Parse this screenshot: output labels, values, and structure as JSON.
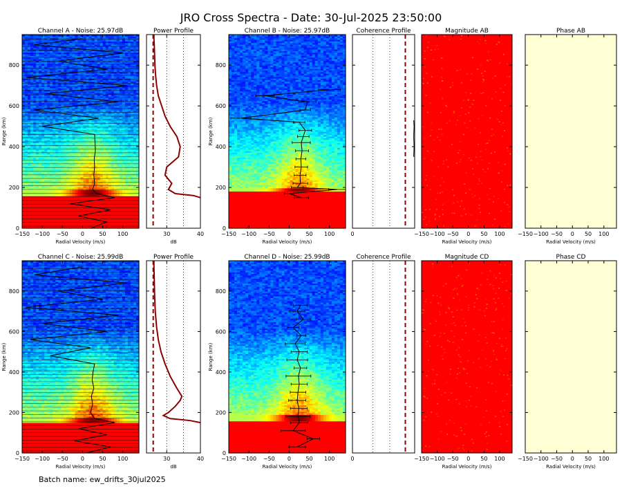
{
  "title": "JRO Cross Spectra - Date: 30-Jul-2025 23:50:00",
  "batch_label": "Batch name: ew_drifts_30jul2025",
  "colors": {
    "red": "#ff0000",
    "profile_line": "#8b0000",
    "cream": "#ffffd6",
    "noise_dash": "#8b0000"
  },
  "chart_data": [
    {
      "id": "channel-a",
      "type": "heatmap",
      "title": "Channel A - Noise: 25.97dB",
      "xlabel": "Radial Velocity (m/s)",
      "ylabel": "Range (km)",
      "xlim": [
        -150,
        140
      ],
      "ylim": [
        0,
        950
      ],
      "xticks": [
        -150,
        -100,
        -50,
        0,
        50,
        100
      ],
      "yticks": [
        0,
        200,
        400,
        600,
        800
      ],
      "echo_layer_km": [
        160,
        190
      ],
      "drift_profile": {
        "range_km": [
          0,
          30,
          60,
          90,
          120,
          150,
          170,
          190,
          220,
          260,
          300,
          340,
          380,
          420,
          460,
          500,
          540,
          580,
          620,
          660,
          700,
          740,
          780,
          820,
          860,
          900,
          930
        ],
        "velocity_ms": [
          20,
          60,
          -10,
          70,
          -30,
          80,
          35,
          25,
          30,
          28,
          30,
          29,
          32,
          31,
          30,
          -100,
          40,
          -120,
          90,
          -90,
          110,
          -140,
          60,
          -60,
          100,
          -120,
          0
        ]
      }
    },
    {
      "id": "power-a",
      "type": "line",
      "title": "Power Profile",
      "xlabel": "dB",
      "xlim": [
        24,
        40
      ],
      "ylim": [
        0,
        950
      ],
      "xticks": [
        30,
        40
      ],
      "noise_level_db": 25.97,
      "x": [
        40,
        38,
        32.5,
        30.5,
        31.5,
        29.5,
        30,
        33.5,
        34,
        33,
        31,
        29.5,
        28.5,
        27.5,
        27,
        26.7,
        26.5,
        26.4,
        26.3,
        26.2,
        26.2
      ],
      "y": [
        150,
        160,
        170,
        190,
        220,
        260,
        300,
        350,
        400,
        450,
        500,
        550,
        600,
        650,
        700,
        750,
        800,
        850,
        900,
        930,
        950
      ]
    },
    {
      "id": "channel-b",
      "type": "heatmap",
      "title": "Channel B - Noise: 25.97dB",
      "xlabel": "Radial Velocity (m/s)",
      "ylabel": "Range (km)",
      "xlim": [
        -150,
        140
      ],
      "ylim": [
        0,
        950
      ],
      "xticks": [
        -150,
        -100,
        -50,
        0,
        50,
        100
      ],
      "yticks": [
        0,
        200,
        400,
        600,
        800
      ],
      "echo_layer_km": [
        180,
        200
      ],
      "drift_profile": {
        "range_km": [
          150,
          170,
          190,
          200,
          220,
          260,
          300,
          340,
          380,
          420,
          450,
          480,
          520,
          540,
          580,
          620,
          650,
          680
        ],
        "velocity_ms": [
          30,
          0,
          120,
          20,
          28,
          27,
          30,
          29,
          32,
          30,
          35,
          40,
          25,
          -120,
          40,
          45,
          -60,
          100
        ]
      }
    },
    {
      "id": "coherence-ab",
      "type": "line",
      "title": "Coherence Profile",
      "xticks": [
        0
      ],
      "xlim": [
        0,
        1
      ],
      "ylim": [
        0,
        950
      ],
      "threshold": 0.85,
      "x": [
        0.985,
        0.99,
        0.985,
        0.99,
        0.985
      ],
      "y": [
        350,
        400,
        450,
        500,
        530
      ]
    },
    {
      "id": "magnitude-ab",
      "type": "heatmap",
      "title": "Magnitude AB",
      "xlabel": "Radial Velocity (m/s)",
      "xlim": [
        -150,
        140
      ],
      "ylim": [
        0,
        950
      ],
      "xticks": [
        -150,
        -100,
        -50,
        0,
        50,
        100
      ]
    },
    {
      "id": "phase-ab",
      "type": "heatmap",
      "title": "Phase AB",
      "xlabel": "Radial Velocity (m/s)",
      "xlim": [
        -150,
        140
      ],
      "ylim": [
        0,
        950
      ],
      "xticks": [
        -150,
        -100,
        -50,
        0,
        50,
        100
      ]
    },
    {
      "id": "channel-c",
      "type": "heatmap",
      "title": "Channel C - Noise: 25.99dB",
      "xlabel": "Radial Velocity (m/s)",
      "ylabel": "Range (km)",
      "xlim": [
        -150,
        140
      ],
      "ylim": [
        0,
        950
      ],
      "xticks": [
        -150,
        -100,
        -50,
        0,
        50,
        100
      ],
      "yticks": [
        0,
        200,
        400,
        600,
        800
      ],
      "echo_layer_km": [
        150,
        175
      ],
      "drift_profile": {
        "range_km": [
          0,
          30,
          60,
          90,
          120,
          150,
          170,
          200,
          240,
          280,
          320,
          360,
          400,
          440,
          480,
          520,
          560,
          600,
          640,
          680,
          720,
          760,
          800,
          840,
          880,
          920
        ],
        "velocity_ms": [
          10,
          70,
          -20,
          60,
          -10,
          80,
          30,
          20,
          25,
          22,
          28,
          24,
          26,
          30,
          -80,
          20,
          -130,
          60,
          -100,
          90,
          -140,
          50,
          -60,
          110,
          -120,
          0
        ]
      }
    },
    {
      "id": "power-c",
      "type": "line",
      "title": "Power Profile",
      "xlabel": "dB",
      "xlim": [
        24,
        40
      ],
      "ylim": [
        0,
        950
      ],
      "xticks": [
        30,
        40
      ],
      "noise_level_db": 25.99,
      "x": [
        40,
        37,
        31,
        29,
        30.5,
        32.5,
        34,
        34.5,
        33,
        31,
        29.5,
        28.3,
        27.5,
        27,
        26.6,
        26.4,
        26.3,
        26.2,
        26.2
      ],
      "y": [
        150,
        160,
        170,
        185,
        200,
        230,
        260,
        280,
        320,
        380,
        440,
        500,
        560,
        620,
        700,
        780,
        860,
        920,
        950
      ]
    },
    {
      "id": "channel-d",
      "type": "heatmap",
      "title": "Channel D - Noise: 25.99dB",
      "xlabel": "Radial Velocity (m/s)",
      "ylabel": "Range (km)",
      "xlim": [
        -150,
        140
      ],
      "ylim": [
        0,
        950
      ],
      "xticks": [
        -150,
        -100,
        -50,
        0,
        50,
        100
      ],
      "yticks": [
        0,
        200,
        400,
        600,
        800
      ],
      "echo_layer_km": [
        160,
        190
      ],
      "drift_profile": {
        "range_km": [
          30,
          70,
          110,
          150,
          180,
          220,
          260,
          300,
          340,
          380,
          420,
          460,
          500,
          540,
          580,
          620,
          660,
          700,
          730
        ],
        "velocity_ms": [
          20,
          60,
          10,
          25,
          22,
          24,
          20,
          22,
          25,
          23,
          28,
          20,
          25,
          15,
          30,
          10,
          35,
          20,
          28
        ]
      }
    },
    {
      "id": "coherence-cd",
      "type": "line",
      "title": "Coherence Profile",
      "xticks": [
        0
      ],
      "xlim": [
        0,
        1
      ],
      "ylim": [
        0,
        950
      ],
      "threshold": 0.85,
      "x": [],
      "y": []
    },
    {
      "id": "magnitude-cd",
      "type": "heatmap",
      "title": "Magnitude CD",
      "xlabel": "Radial Velocity (m/s)",
      "xlim": [
        -150,
        140
      ],
      "ylim": [
        0,
        950
      ],
      "xticks": [
        -150,
        -100,
        -50,
        0,
        50,
        100
      ]
    },
    {
      "id": "phase-cd",
      "type": "heatmap",
      "title": "Phase CD",
      "xlabel": "Radial Velocity (m/s)",
      "xlim": [
        -150,
        140
      ],
      "ylim": [
        0,
        950
      ],
      "xticks": [
        -150,
        -100,
        -50,
        0,
        50,
        100
      ]
    }
  ]
}
